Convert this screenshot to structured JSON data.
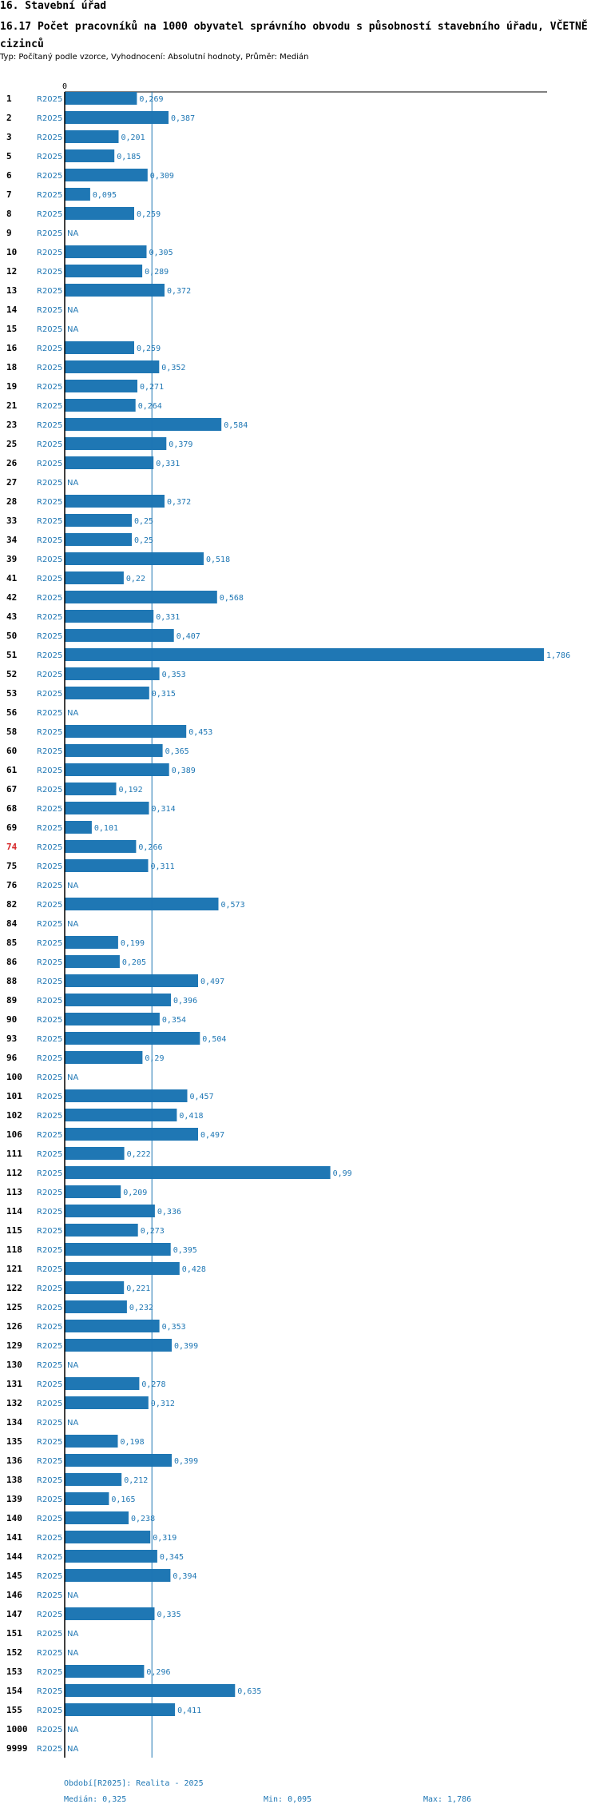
{
  "header": {
    "section": "16. Stavební úřad",
    "title": "16.17 Počet pracovníků na 1000 obyvatel správního obvodu s působností stavebního úřadu, VČETNĚ cizinců",
    "subtitle": "Typ: Počítaný podle vzorce, Vyhodnocení: Absolutní hodnoty, Průměr: Medián"
  },
  "footer": {
    "period": "Období[R2025]: Realita - 2025",
    "median": "Medián: 0,325",
    "min": "Min: 0,095",
    "max": "Max: 1,786"
  },
  "chart_data": {
    "type": "bar",
    "orientation": "horizontal",
    "axis_zero_label": "0",
    "series_label": "R2025",
    "na_label": "NA",
    "median": 0.325,
    "xlim": [
      0,
      1.786
    ],
    "highlight_category": "74",
    "colors": {
      "bar": "#1f77b4",
      "label": "#1f77b4",
      "highlight": "#d62728"
    },
    "categories": [
      "1",
      "2",
      "3",
      "5",
      "6",
      "7",
      "8",
      "9",
      "10",
      "12",
      "13",
      "14",
      "15",
      "16",
      "18",
      "19",
      "21",
      "23",
      "25",
      "26",
      "27",
      "28",
      "33",
      "34",
      "39",
      "41",
      "42",
      "43",
      "50",
      "51",
      "52",
      "53",
      "56",
      "58",
      "60",
      "61",
      "67",
      "68",
      "69",
      "74",
      "75",
      "76",
      "82",
      "84",
      "85",
      "86",
      "88",
      "89",
      "90",
      "93",
      "96",
      "100",
      "101",
      "102",
      "106",
      "111",
      "112",
      "113",
      "114",
      "115",
      "118",
      "121",
      "122",
      "125",
      "126",
      "129",
      "130",
      "131",
      "132",
      "134",
      "135",
      "136",
      "138",
      "139",
      "140",
      "141",
      "144",
      "145",
      "146",
      "147",
      "151",
      "152",
      "153",
      "154",
      "155",
      "1000",
      "9999"
    ],
    "values": [
      0.269,
      0.387,
      0.201,
      0.185,
      0.309,
      0.095,
      0.259,
      null,
      0.305,
      0.289,
      0.372,
      null,
      null,
      0.259,
      0.352,
      0.271,
      0.264,
      0.584,
      0.379,
      0.331,
      null,
      0.372,
      0.25,
      0.25,
      0.518,
      0.22,
      0.568,
      0.331,
      0.407,
      1.786,
      0.353,
      0.315,
      null,
      0.453,
      0.365,
      0.389,
      0.192,
      0.314,
      0.101,
      0.266,
      0.311,
      null,
      0.573,
      null,
      0.199,
      0.205,
      0.497,
      0.396,
      0.354,
      0.504,
      0.29,
      null,
      0.457,
      0.418,
      0.497,
      0.222,
      0.99,
      0.209,
      0.336,
      0.273,
      0.395,
      0.428,
      0.221,
      0.232,
      0.353,
      0.399,
      null,
      0.278,
      0.312,
      null,
      0.198,
      0.399,
      0.212,
      0.165,
      0.238,
      0.319,
      0.345,
      0.394,
      null,
      0.335,
      null,
      null,
      0.296,
      0.635,
      0.411,
      null,
      null
    ],
    "value_labels": [
      "0,269",
      "0,387",
      "0,201",
      "0,185",
      "0,309",
      "0,095",
      "0,259",
      "NA",
      "0,305",
      "0,289",
      "0,372",
      "NA",
      "NA",
      "0,259",
      "0,352",
      "0,271",
      "0,264",
      "0,584",
      "0,379",
      "0,331",
      "NA",
      "0,372",
      "0,25",
      "0,25",
      "0,518",
      "0,22",
      "0,568",
      "0,331",
      "0,407",
      "1,786",
      "0,353",
      "0,315",
      "NA",
      "0,453",
      "0,365",
      "0,389",
      "0,192",
      "0,314",
      "0,101",
      "0,266",
      "0,311",
      "NA",
      "0,573",
      "NA",
      "0,199",
      "0,205",
      "0,497",
      "0,396",
      "0,354",
      "0,504",
      "0,29",
      "NA",
      "0,457",
      "0,418",
      "0,497",
      "0,222",
      "0,99",
      "0,209",
      "0,336",
      "0,273",
      "0,395",
      "0,428",
      "0,221",
      "0,232",
      "0,353",
      "0,399",
      "NA",
      "0,278",
      "0,312",
      "NA",
      "0,198",
      "0,399",
      "0,212",
      "0,165",
      "0,238",
      "0,319",
      "0,345",
      "0,394",
      "NA",
      "0,335",
      "NA",
      "NA",
      "0,296",
      "0,635",
      "0,411",
      "NA",
      "NA"
    ]
  }
}
